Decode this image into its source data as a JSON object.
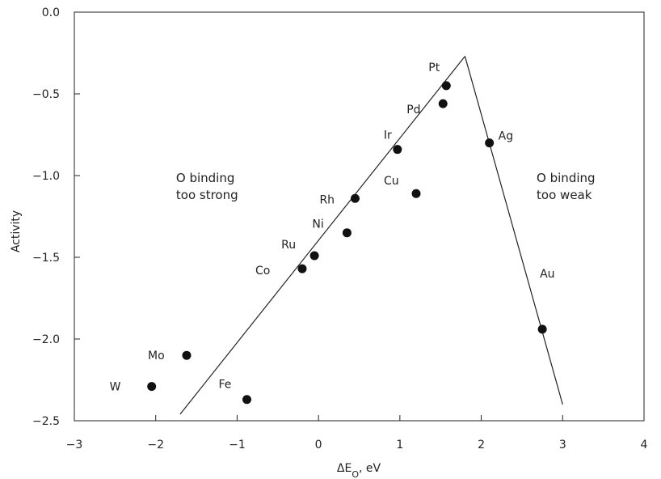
{
  "chart_data": {
    "type": "scatter",
    "title": "",
    "xlabel": {
      "main": "ΔE",
      "sub": "O",
      "rest": ", eV"
    },
    "ylabel": "Activity",
    "xlim": [
      -3,
      4
    ],
    "ylim": [
      -2.5,
      0.0
    ],
    "grid": false,
    "x_ticks": [
      -3,
      -2,
      -1,
      0,
      1,
      2,
      3,
      4
    ],
    "x_tick_labels": [
      "−3",
      "−2",
      "−1",
      "0",
      "1",
      "2",
      "3",
      "4"
    ],
    "y_ticks": [
      0.0,
      -0.5,
      -1.0,
      -1.5,
      -2.0,
      -2.5
    ],
    "y_tick_labels": [
      "0.0",
      "−0.5",
      "−1.0",
      "−1.5",
      "−2.0",
      "−2.5"
    ],
    "points": [
      {
        "label": "Pt",
        "x": 1.57,
        "y": -0.45
      },
      {
        "label": "Pd",
        "x": 1.53,
        "y": -0.56
      },
      {
        "label": "Ir",
        "x": 0.97,
        "y": -0.84
      },
      {
        "label": "Cu",
        "x": 1.2,
        "y": -1.11
      },
      {
        "label": "Rh",
        "x": 0.45,
        "y": -1.14
      },
      {
        "label": "Ni",
        "x": 0.35,
        "y": -1.35
      },
      {
        "label": "Ru",
        "x": -0.05,
        "y": -1.49
      },
      {
        "label": "Co",
        "x": -0.2,
        "y": -1.57
      },
      {
        "label": "Mo",
        "x": -1.62,
        "y": -2.1
      },
      {
        "label": "W",
        "x": -2.05,
        "y": -2.29
      },
      {
        "label": "Fe",
        "x": -0.88,
        "y": -2.37
      },
      {
        "label": "Ag",
        "x": 2.1,
        "y": -0.8
      },
      {
        "label": "Au",
        "x": 2.75,
        "y": -1.94
      }
    ],
    "lines": [
      {
        "x": [
          -1.7,
          1.8
        ],
        "y": [
          -2.46,
          -0.27
        ]
      },
      {
        "x": [
          1.8,
          3.0
        ],
        "y": [
          -0.27,
          -2.4
        ]
      }
    ],
    "annotations": [
      {
        "lines": [
          "O binding",
          "too strong"
        ],
        "x": -1.75,
        "y": -1.0
      },
      {
        "lines": [
          "O binding",
          "too weak"
        ],
        "x": 2.68,
        "y": -1.0
      }
    ]
  }
}
